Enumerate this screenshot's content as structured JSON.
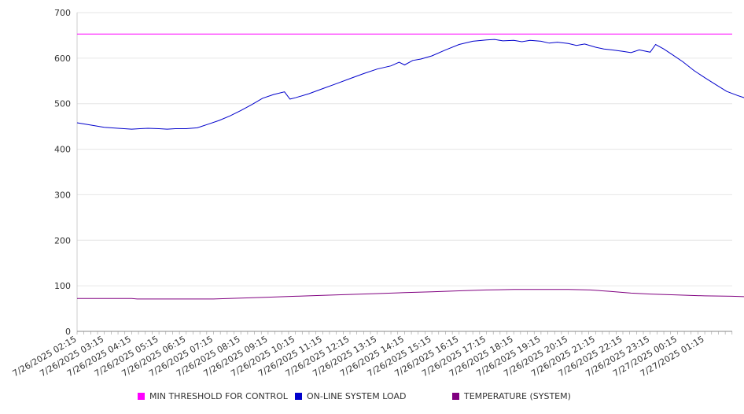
{
  "chart_data": {
    "type": "line",
    "title": "",
    "xlabel": "",
    "ylabel": "",
    "ylim": [
      0,
      700
    ],
    "yticks": [
      0,
      100,
      200,
      300,
      400,
      500,
      600,
      700
    ],
    "x_tick_labels": [
      "7/26/2025 02:15",
      "7/26/2025 03:15",
      "7/26/2025 04:15",
      "7/26/2025 05:15",
      "7/26/2025 06:15",
      "7/26/2025 07:15",
      "7/26/2025 08:15",
      "7/26/2025 09:15",
      "7/26/2025 10:15",
      "7/26/2025 11:15",
      "7/26/2025 12:15",
      "7/26/2025 13:15",
      "7/26/2025 14:15",
      "7/26/2025 15:15",
      "7/26/2025 16:15",
      "7/26/2025 17:15",
      "7/26/2025 18:15",
      "7/26/2025 19:15",
      "7/26/2025 20:15",
      "7/26/2025 21:15",
      "7/26/2025 22:15",
      "7/26/2025 23:15",
      "7/27/2025 00:15",
      "7/27/2025 01:15"
    ],
    "grid": "horizontal",
    "legend_position": "bottom",
    "x_hours_range": [
      0,
      24
    ],
    "series": [
      {
        "name": "MIN THRESHOLD FOR CONTROL",
        "color": "#ff00ff",
        "points": [
          [
            0,
            653
          ],
          [
            24,
            653
          ]
        ]
      },
      {
        "name": "ON-LINE SYSTEM LOAD",
        "color": "#0000cc",
        "points": [
          [
            0,
            458
          ],
          [
            0.5,
            453
          ],
          [
            1,
            448
          ],
          [
            1.5,
            446
          ],
          [
            2,
            444
          ],
          [
            2.3,
            445
          ],
          [
            2.6,
            446
          ],
          [
            3,
            445
          ],
          [
            3.3,
            444
          ],
          [
            3.6,
            445
          ],
          [
            4,
            445
          ],
          [
            4.4,
            447
          ],
          [
            4.8,
            455
          ],
          [
            5.2,
            463
          ],
          [
            5.6,
            473
          ],
          [
            6,
            485
          ],
          [
            6.4,
            498
          ],
          [
            6.8,
            512
          ],
          [
            7.2,
            520
          ],
          [
            7.6,
            526
          ],
          [
            7.8,
            510
          ],
          [
            8,
            513
          ],
          [
            8.5,
            522
          ],
          [
            9,
            533
          ],
          [
            9.5,
            544
          ],
          [
            10,
            555
          ],
          [
            10.5,
            566
          ],
          [
            11,
            576
          ],
          [
            11.5,
            583
          ],
          [
            11.8,
            591
          ],
          [
            12,
            585
          ],
          [
            12.3,
            595
          ],
          [
            12.6,
            598
          ],
          [
            13,
            605
          ],
          [
            13.5,
            618
          ],
          [
            14,
            630
          ],
          [
            14.5,
            637
          ],
          [
            15,
            640
          ],
          [
            15.3,
            641
          ],
          [
            15.6,
            638
          ],
          [
            16,
            639
          ],
          [
            16.3,
            636
          ],
          [
            16.6,
            639
          ],
          [
            17,
            637
          ],
          [
            17.3,
            633
          ],
          [
            17.6,
            635
          ],
          [
            18,
            632
          ],
          [
            18.3,
            628
          ],
          [
            18.6,
            631
          ],
          [
            19,
            624
          ],
          [
            19.3,
            620
          ],
          [
            19.6,
            618
          ],
          [
            20,
            615
          ],
          [
            20.3,
            612
          ],
          [
            20.6,
            618
          ],
          [
            21,
            613
          ],
          [
            21.2,
            630
          ],
          [
            21.5,
            620
          ],
          [
            21.8,
            608
          ],
          [
            22.2,
            592
          ],
          [
            22.6,
            573
          ],
          [
            23,
            557
          ],
          [
            23.4,
            542
          ],
          [
            23.8,
            527
          ],
          [
            24.2,
            518
          ],
          [
            24.6,
            510
          ],
          [
            25,
            505
          ],
          [
            25.3,
            498
          ],
          [
            25.6,
            480
          ],
          [
            25.9,
            476
          ],
          [
            26.2,
            472
          ],
          [
            26.4,
            470
          ]
        ]
      },
      {
        "name": "TEMPERATURE (SYSTEM)",
        "color": "#800080",
        "points": [
          [
            0,
            72
          ],
          [
            2,
            72
          ],
          [
            2.2,
            71
          ],
          [
            4,
            71
          ],
          [
            5,
            71
          ],
          [
            6,
            73
          ],
          [
            7,
            75
          ],
          [
            8,
            77
          ],
          [
            9,
            79
          ],
          [
            10,
            81
          ],
          [
            11,
            83
          ],
          [
            12,
            85
          ],
          [
            13,
            87
          ],
          [
            14,
            89
          ],
          [
            15,
            91
          ],
          [
            16,
            92
          ],
          [
            17,
            92
          ],
          [
            18,
            92
          ],
          [
            18.8,
            91
          ],
          [
            19.5,
            88
          ],
          [
            20.3,
            84
          ],
          [
            21,
            82
          ],
          [
            22,
            80
          ],
          [
            23,
            78
          ],
          [
            24,
            77
          ],
          [
            25,
            75
          ],
          [
            26,
            74
          ],
          [
            26.4,
            74
          ]
        ]
      }
    ]
  }
}
